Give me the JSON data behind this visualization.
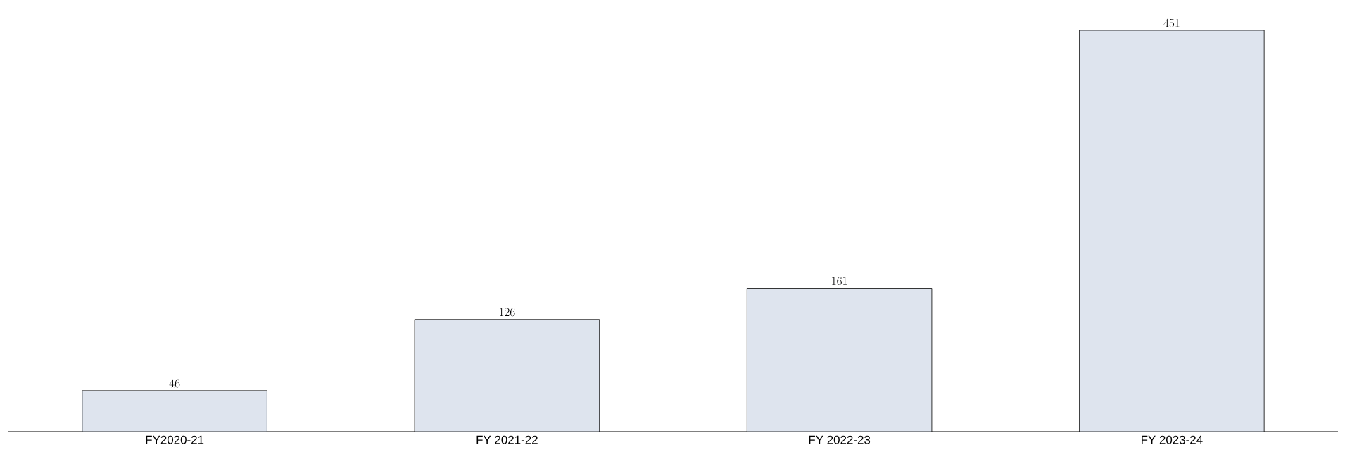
{
  "chart_data": {
    "type": "bar",
    "categories": [
      "FY2020-21",
      "FY 2021-22",
      "FY 2022-23",
      "FY 2023-24"
    ],
    "values": [
      46,
      126,
      161,
      451
    ],
    "color": "#dee4ee",
    "data_labels": true
  }
}
